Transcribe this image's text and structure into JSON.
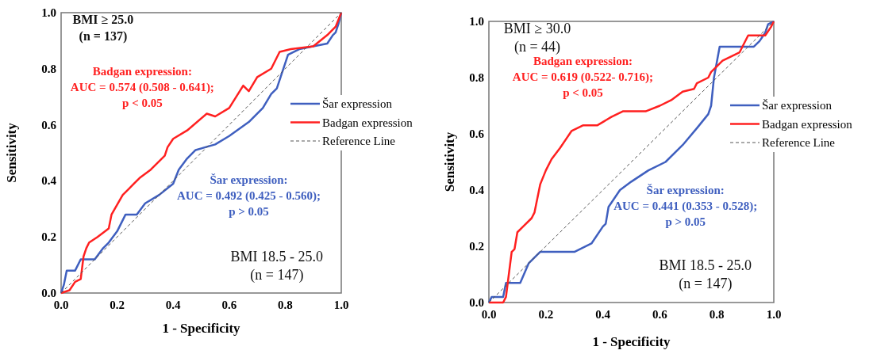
{
  "chart_data": [
    {
      "type": "line",
      "xlabel": "1 - Specificity",
      "ylabel": "Sensitivity",
      "xlim": [
        0,
        1
      ],
      "ylim": [
        0,
        1
      ],
      "xticks": [
        {
          "value": 0,
          "label": "0.0"
        },
        {
          "value": 0.2,
          "label": "0.2"
        },
        {
          "value": 0.4,
          "label": "0.4"
        },
        {
          "value": 0.6,
          "label": "0.6"
        },
        {
          "value": 0.8,
          "label": "0.8"
        },
        {
          "value": 1,
          "label": "1.0"
        }
      ],
      "yticks": [
        {
          "value": 0,
          "label": "0.0"
        },
        {
          "value": 0.2,
          "label": "0.2"
        },
        {
          "value": 0.4,
          "label": "0.4"
        },
        {
          "value": 0.6,
          "label": "0.6"
        },
        {
          "value": 0.8,
          "label": "0.8"
        },
        {
          "value": 1,
          "label": "1.0"
        }
      ],
      "grid": false,
      "legend": "right",
      "annotations": [
        "BMI ≥ 25.0\n(n = 137)",
        "Badgan expression:\nAUC = 0.574 (0.508 - 0.641);\np < 0.05",
        "Šar expression:\nAUC = 0.492 (0.425 - 0.560);\np > 0.05",
        "BMI 18.5 - 25.0\n(n = 147)"
      ],
      "series": [
        {
          "name": "Šar expression",
          "color": "#3f5fbf",
          "x": [
            0,
            0.01,
            0.02,
            0.05,
            0.07,
            0.12,
            0.15,
            0.17,
            0.2,
            0.23,
            0.27,
            0.3,
            0.35,
            0.4,
            0.42,
            0.45,
            0.48,
            0.55,
            0.6,
            0.67,
            0.72,
            0.75,
            0.77,
            0.79,
            0.81,
            0.85,
            0.9,
            0.95,
            0.97,
            0.98,
            0.99,
            1
          ],
          "values": [
            0,
            0.03,
            0.08,
            0.08,
            0.12,
            0.12,
            0.16,
            0.18,
            0.22,
            0.28,
            0.28,
            0.32,
            0.35,
            0.39,
            0.44,
            0.48,
            0.51,
            0.53,
            0.56,
            0.61,
            0.66,
            0.71,
            0.73,
            0.79,
            0.85,
            0.87,
            0.88,
            0.89,
            0.92,
            0.93,
            0.96,
            1
          ]
        },
        {
          "name": "Badgan expression",
          "color": "#ff2020",
          "x": [
            0,
            0.03,
            0.05,
            0.07,
            0.08,
            0.09,
            0.1,
            0.13,
            0.17,
            0.18,
            0.22,
            0.24,
            0.26,
            0.28,
            0.32,
            0.35,
            0.37,
            0.38,
            0.4,
            0.45,
            0.52,
            0.55,
            0.6,
            0.65,
            0.67,
            0.7,
            0.75,
            0.78,
            0.82,
            0.9,
            0.95,
            0.98,
            1
          ],
          "values": [
            0,
            0.01,
            0.04,
            0.05,
            0.13,
            0.16,
            0.18,
            0.2,
            0.23,
            0.28,
            0.35,
            0.37,
            0.39,
            0.41,
            0.44,
            0.47,
            0.49,
            0.52,
            0.55,
            0.58,
            0.64,
            0.63,
            0.66,
            0.74,
            0.72,
            0.77,
            0.8,
            0.86,
            0.87,
            0.88,
            0.92,
            0.95,
            1
          ]
        },
        {
          "name": "Reference Line",
          "color": "#555555",
          "line_style": "dashed",
          "x": [
            0,
            1
          ],
          "values": [
            0,
            1
          ]
        }
      ]
    },
    {
      "type": "line",
      "xlabel": "1 - Specificity",
      "ylabel": "Sensitivity",
      "xlim": [
        0,
        1
      ],
      "ylim": [
        0,
        1
      ],
      "xticks": [
        {
          "value": 0,
          "label": "0.0"
        },
        {
          "value": 0.2,
          "label": "0.2"
        },
        {
          "value": 0.4,
          "label": "0.4"
        },
        {
          "value": 0.6,
          "label": "0.6"
        },
        {
          "value": 0.8,
          "label": "0.8"
        },
        {
          "value": 1,
          "label": "1.0"
        }
      ],
      "yticks": [
        {
          "value": 0,
          "label": "0.0"
        },
        {
          "value": 0.2,
          "label": "0.2"
        },
        {
          "value": 0.4,
          "label": "0.4"
        },
        {
          "value": 0.6,
          "label": "0.6"
        },
        {
          "value": 0.8,
          "label": "0.8"
        },
        {
          "value": 1,
          "label": "1.0"
        }
      ],
      "grid": false,
      "legend": "right",
      "annotations": [
        "BMI ≥ 30.0\n(n = 44)",
        "Badgan expression:\nAUC = 0.619 (0.522- 0.716);\np < 0.05",
        "Šar expression:\nAUC = 0.441 (0.353 - 0.528);\np > 0.05",
        "BMI 18.5 - 25.0\n(n = 147)"
      ],
      "series": [
        {
          "name": "Šar expression",
          "color": "#3f5fbf",
          "x": [
            0,
            0.01,
            0.05,
            0.06,
            0.11,
            0.14,
            0.17,
            0.18,
            0.3,
            0.36,
            0.4,
            0.41,
            0.42,
            0.46,
            0.5,
            0.56,
            0.62,
            0.68,
            0.73,
            0.77,
            0.78,
            0.79,
            0.81,
            0.93,
            0.95,
            0.97,
            0.98,
            1
          ],
          "values": [
            0,
            0.02,
            0.02,
            0.07,
            0.07,
            0.14,
            0.17,
            0.18,
            0.18,
            0.21,
            0.27,
            0.28,
            0.34,
            0.4,
            0.43,
            0.47,
            0.5,
            0.56,
            0.62,
            0.67,
            0.7,
            0.8,
            0.91,
            0.91,
            0.93,
            0.96,
            0.99,
            1
          ]
        },
        {
          "name": "Badgan expression",
          "color": "#ff2020",
          "x": [
            0,
            0.05,
            0.06,
            0.07,
            0.08,
            0.09,
            0.1,
            0.12,
            0.15,
            0.16,
            0.17,
            0.18,
            0.2,
            0.22,
            0.25,
            0.27,
            0.29,
            0.33,
            0.38,
            0.43,
            0.47,
            0.55,
            0.6,
            0.64,
            0.68,
            0.72,
            0.73,
            0.77,
            0.78,
            0.8,
            0.82,
            0.88,
            0.91,
            0.97,
            0.99,
            1
          ],
          "values": [
            0,
            0,
            0.02,
            0.1,
            0.18,
            0.19,
            0.25,
            0.27,
            0.3,
            0.32,
            0.37,
            0.42,
            0.47,
            0.51,
            0.55,
            0.58,
            0.61,
            0.63,
            0.63,
            0.66,
            0.68,
            0.68,
            0.7,
            0.72,
            0.75,
            0.76,
            0.78,
            0.8,
            0.82,
            0.84,
            0.86,
            0.89,
            0.95,
            0.95,
            0.98,
            1
          ]
        },
        {
          "name": "Reference Line",
          "color": "#555555",
          "line_style": "dashed",
          "x": [
            0,
            1
          ],
          "values": [
            0,
            1
          ]
        }
      ]
    }
  ]
}
